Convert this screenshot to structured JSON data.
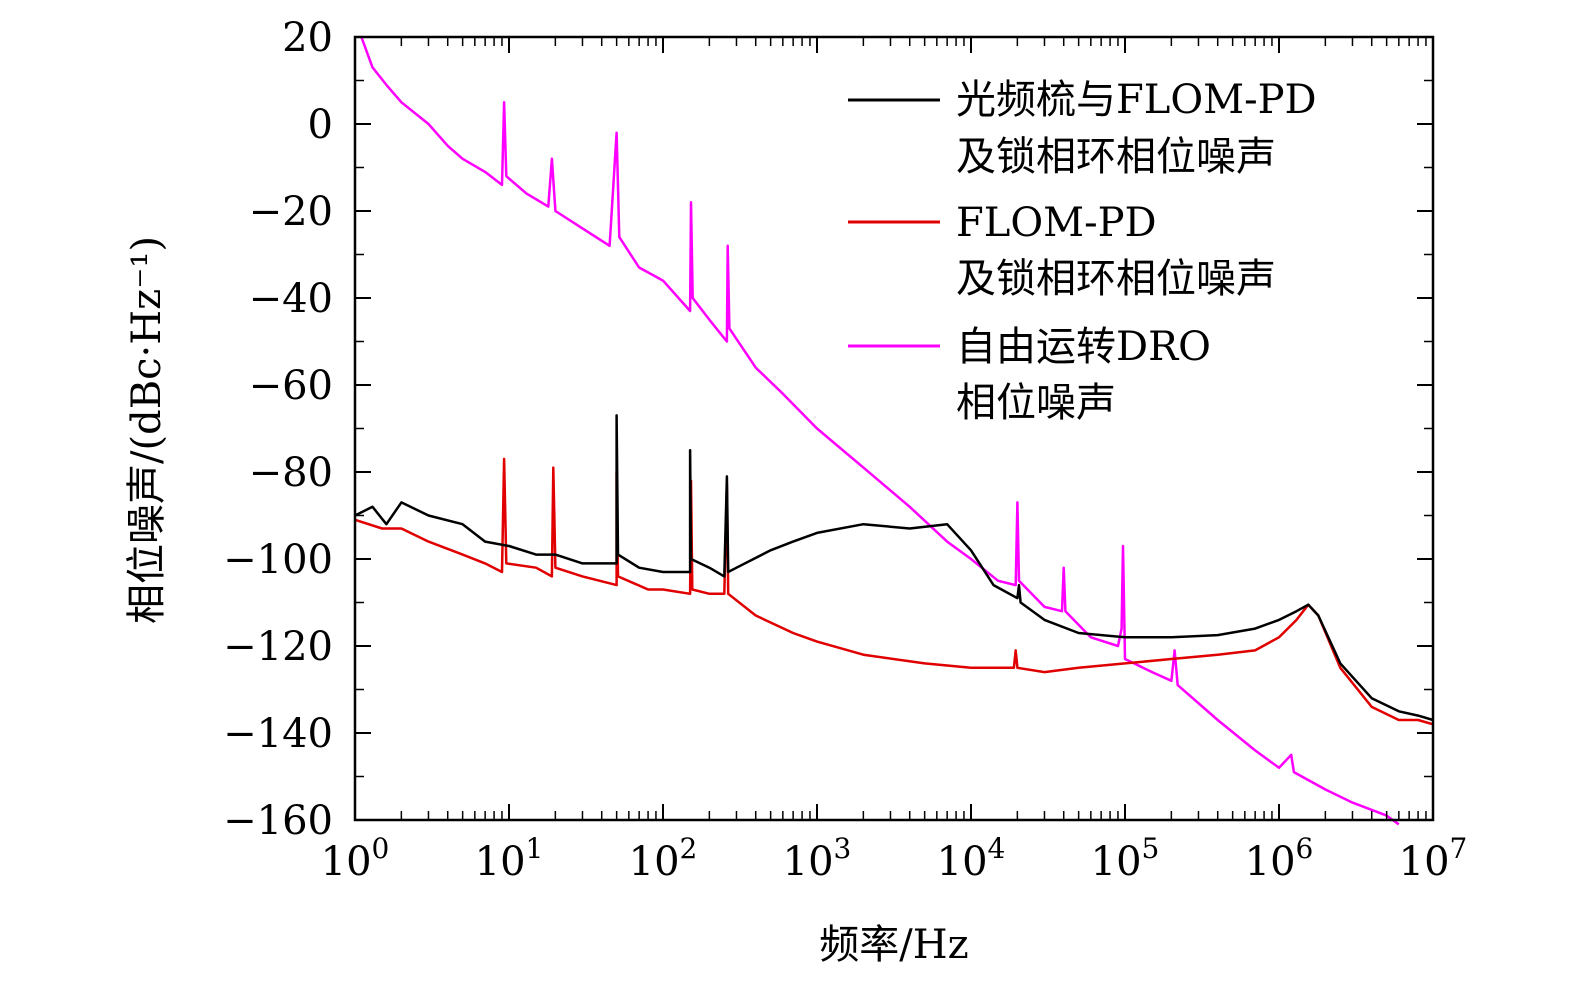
{
  "chart_data": {
    "type": "line",
    "xlabel": "频率/Hz",
    "ylabel": "相位噪声/(dBc·Hz⁻¹)",
    "x_scale": "log",
    "xlim": [
      1,
      10000000
    ],
    "ylim": [
      -160,
      20
    ],
    "x_ticks": [
      {
        "value": 1,
        "base": "10",
        "exp": "0"
      },
      {
        "value": 10,
        "base": "10",
        "exp": "1"
      },
      {
        "value": 100,
        "base": "10",
        "exp": "2"
      },
      {
        "value": 1000,
        "base": "10",
        "exp": "3"
      },
      {
        "value": 10000,
        "base": "10",
        "exp": "4"
      },
      {
        "value": 100000,
        "base": "10",
        "exp": "5"
      },
      {
        "value": 1000000,
        "base": "10",
        "exp": "6"
      },
      {
        "value": 10000000,
        "base": "10",
        "exp": "7"
      }
    ],
    "y_ticks": [
      {
        "value": 20,
        "label": "20"
      },
      {
        "value": 0,
        "label": "0"
      },
      {
        "value": -20,
        "label": "−20"
      },
      {
        "value": -40,
        "label": "−40"
      },
      {
        "value": -60,
        "label": "−60"
      },
      {
        "value": -80,
        "label": "−80"
      },
      {
        "value": -100,
        "label": "−100"
      },
      {
        "value": -120,
        "label": "−120"
      },
      {
        "value": -140,
        "label": "−140"
      },
      {
        "value": -160,
        "label": "−160"
      }
    ],
    "grid": false,
    "legend_position": "top-right",
    "series": [
      {
        "name": "光频梳与FLOM-PD及锁相环相位噪声",
        "legend_lines": [
          "光频梳与FLOM-PD",
          "及锁相环相位噪声"
        ],
        "color": "#000000",
        "points": [
          [
            1,
            -90
          ],
          [
            1.3,
            -88
          ],
          [
            1.6,
            -92
          ],
          [
            2,
            -87
          ],
          [
            3,
            -90
          ],
          [
            5,
            -92
          ],
          [
            7,
            -96
          ],
          [
            10,
            -97
          ],
          [
            15,
            -99
          ],
          [
            20,
            -99
          ],
          [
            30,
            -101
          ],
          [
            50,
            -101
          ],
          [
            50,
            -67
          ],
          [
            51,
            -99
          ],
          [
            70,
            -102
          ],
          [
            100,
            -103
          ],
          [
            150,
            -103
          ],
          [
            150,
            -75
          ],
          [
            152,
            -100
          ],
          [
            200,
            -102
          ],
          [
            250,
            -104
          ],
          [
            260,
            -81
          ],
          [
            265,
            -103
          ],
          [
            300,
            -102
          ],
          [
            500,
            -98
          ],
          [
            700,
            -96
          ],
          [
            1000,
            -94
          ],
          [
            2000,
            -92
          ],
          [
            4000,
            -93
          ],
          [
            7000,
            -92
          ],
          [
            10000,
            -98
          ],
          [
            14000,
            -106
          ],
          [
            20000,
            -109
          ],
          [
            20500,
            -106
          ],
          [
            21000,
            -110
          ],
          [
            30000,
            -114
          ],
          [
            50000,
            -117
          ],
          [
            100000,
            -118
          ],
          [
            200000,
            -118
          ],
          [
            400000,
            -117.5
          ],
          [
            700000,
            -116
          ],
          [
            1000000,
            -114
          ],
          [
            1300000,
            -112
          ],
          [
            1550000,
            -110.5
          ],
          [
            1800000,
            -113
          ],
          [
            2500000,
            -124
          ],
          [
            4000000,
            -132
          ],
          [
            6000000,
            -135
          ],
          [
            8000000,
            -136
          ],
          [
            10000000,
            -137
          ]
        ]
      },
      {
        "name": "FLOM-PD及锁相环相位噪声",
        "legend_lines": [
          "FLOM-PD",
          "及锁相环相位噪声"
        ],
        "color": "#e00000",
        "points": [
          [
            1,
            -91
          ],
          [
            1.5,
            -93
          ],
          [
            2,
            -93
          ],
          [
            3,
            -96
          ],
          [
            5,
            -99
          ],
          [
            7,
            -101
          ],
          [
            9,
            -103
          ],
          [
            9.3,
            -77
          ],
          [
            9.6,
            -101
          ],
          [
            15,
            -102
          ],
          [
            19,
            -104
          ],
          [
            19.4,
            -79
          ],
          [
            20,
            -102
          ],
          [
            30,
            -104
          ],
          [
            50,
            -106
          ],
          [
            50,
            -80
          ],
          [
            51,
            -104
          ],
          [
            80,
            -107
          ],
          [
            100,
            -107
          ],
          [
            150,
            -108
          ],
          [
            152,
            -82
          ],
          [
            155,
            -107
          ],
          [
            200,
            -108
          ],
          [
            250,
            -108
          ],
          [
            260,
            -83
          ],
          [
            265,
            -108
          ],
          [
            400,
            -113
          ],
          [
            700,
            -117
          ],
          [
            1000,
            -119
          ],
          [
            2000,
            -122
          ],
          [
            5000,
            -124
          ],
          [
            10000,
            -125
          ],
          [
            19000,
            -125
          ],
          [
            19500,
            -121
          ],
          [
            20000,
            -125
          ],
          [
            30000,
            -126
          ],
          [
            50000,
            -125
          ],
          [
            100000,
            -124
          ],
          [
            200000,
            -123
          ],
          [
            400000,
            -122
          ],
          [
            700000,
            -121
          ],
          [
            1000000,
            -118
          ],
          [
            1300000,
            -114
          ],
          [
            1550000,
            -110.5
          ],
          [
            1800000,
            -113
          ],
          [
            2500000,
            -125
          ],
          [
            4000000,
            -134
          ],
          [
            6000000,
            -137
          ],
          [
            8000000,
            -137
          ],
          [
            10000000,
            -138
          ]
        ]
      },
      {
        "name": "自由运转DRO相位噪声",
        "legend_lines": [
          "自由运转DRO",
          "相位噪声"
        ],
        "color": "#ff00ff",
        "points": [
          [
            1.1,
            20
          ],
          [
            1.3,
            13
          ],
          [
            1.6,
            9
          ],
          [
            2,
            5
          ],
          [
            3,
            0
          ],
          [
            4,
            -5
          ],
          [
            5,
            -8
          ],
          [
            7,
            -11
          ],
          [
            9,
            -14
          ],
          [
            9.3,
            5
          ],
          [
            9.6,
            -12
          ],
          [
            13,
            -16
          ],
          [
            18,
            -19
          ],
          [
            19,
            -8
          ],
          [
            20,
            -20
          ],
          [
            30,
            -24
          ],
          [
            45,
            -28
          ],
          [
            50,
            -2
          ],
          [
            52,
            -26
          ],
          [
            70,
            -33
          ],
          [
            100,
            -36
          ],
          [
            150,
            -43
          ],
          [
            152,
            -18
          ],
          [
            156,
            -40
          ],
          [
            200,
            -45
          ],
          [
            260,
            -50
          ],
          [
            263,
            -28
          ],
          [
            270,
            -47
          ],
          [
            400,
            -56
          ],
          [
            600,
            -62
          ],
          [
            1000,
            -70
          ],
          [
            2000,
            -79
          ],
          [
            4000,
            -88
          ],
          [
            7000,
            -96
          ],
          [
            10000,
            -100
          ],
          [
            15000,
            -105
          ],
          [
            19500,
            -106
          ],
          [
            20000,
            -87
          ],
          [
            20500,
            -105
          ],
          [
            30000,
            -111
          ],
          [
            39000,
            -112
          ],
          [
            40000,
            -102
          ],
          [
            41000,
            -112
          ],
          [
            60000,
            -118
          ],
          [
            90000,
            -120
          ],
          [
            95000,
            -116
          ],
          [
            97000,
            -97
          ],
          [
            100000,
            -123
          ],
          [
            150000,
            -126
          ],
          [
            200000,
            -128
          ],
          [
            210000,
            -121
          ],
          [
            220000,
            -129
          ],
          [
            400000,
            -137
          ],
          [
            700000,
            -144
          ],
          [
            1000000,
            -148
          ],
          [
            1200000,
            -145
          ],
          [
            1250000,
            -149
          ],
          [
            2000000,
            -153
          ],
          [
            3000000,
            -156
          ],
          [
            5000000,
            -159
          ],
          [
            6000000,
            -161
          ]
        ]
      }
    ]
  }
}
